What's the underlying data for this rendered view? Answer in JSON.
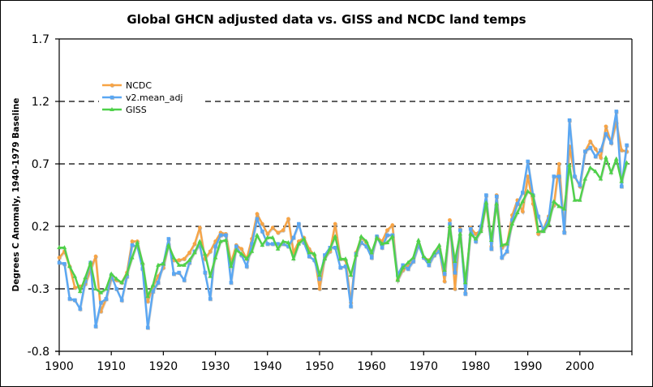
{
  "chart_data": {
    "type": "line",
    "title": "Global GHCN adjusted data vs. GISS and NCDC land temps",
    "xlabel": "",
    "ylabel": "Degrees C Anomaly, 1940-1979 Baseline",
    "xlim": [
      1900,
      2010
    ],
    "ylim": [
      -0.8,
      1.7
    ],
    "xticks": [
      1900,
      1910,
      1920,
      1930,
      1940,
      1950,
      1960,
      1970,
      1980,
      1990,
      2000
    ],
    "yticks": [
      -0.8,
      -0.3,
      0.2,
      0.7,
      1.2,
      1.7
    ],
    "ytick_labels": [
      "-0.8",
      "-0.3",
      "0.2",
      "0.7",
      "1.2",
      "1.7"
    ],
    "grid": "horizontal dashed at -0.3, 0.2, 0.7, 1.2",
    "legend_position": "upper-left",
    "x": [
      1900,
      1901,
      1902,
      1903,
      1904,
      1905,
      1906,
      1907,
      1908,
      1909,
      1910,
      1911,
      1912,
      1913,
      1914,
      1915,
      1916,
      1917,
      1918,
      1919,
      1920,
      1921,
      1922,
      1923,
      1924,
      1925,
      1926,
      1927,
      1928,
      1929,
      1930,
      1931,
      1932,
      1933,
      1934,
      1935,
      1936,
      1937,
      1938,
      1939,
      1940,
      1941,
      1942,
      1943,
      1944,
      1945,
      1946,
      1947,
      1948,
      1949,
      1950,
      1951,
      1952,
      1953,
      1954,
      1955,
      1956,
      1957,
      1958,
      1959,
      1960,
      1961,
      1962,
      1963,
      1964,
      1965,
      1966,
      1967,
      1968,
      1969,
      1970,
      1971,
      1972,
      1973,
      1974,
      1975,
      1976,
      1977,
      1978,
      1979,
      1980,
      1981,
      1982,
      1983,
      1984,
      1985,
      1986,
      1987,
      1988,
      1989,
      1990,
      1991,
      1992,
      1993,
      1994,
      1995,
      1996,
      1997,
      1998,
      1999,
      2000,
      2001,
      2002,
      2003,
      2004,
      2005,
      2006,
      2007,
      2008,
      2009
    ],
    "series": [
      {
        "name": "NCDC",
        "color": "#f7a445",
        "marker": "circle",
        "values": [
          -0.05,
          0.0,
          -0.12,
          -0.29,
          -0.28,
          -0.26,
          -0.15,
          -0.04,
          -0.48,
          -0.38,
          -0.22,
          -0.23,
          -0.25,
          -0.17,
          0.08,
          0.08,
          -0.1,
          -0.4,
          -0.28,
          -0.2,
          -0.13,
          0.06,
          -0.07,
          -0.07,
          -0.06,
          -0.01,
          0.06,
          0.19,
          -0.06,
          0.0,
          0.08,
          0.15,
          0.14,
          -0.09,
          0.05,
          0.02,
          -0.06,
          0.1,
          0.3,
          0.22,
          0.14,
          0.19,
          0.15,
          0.17,
          0.26,
          -0.01,
          0.08,
          0.11,
          0.02,
          -0.03,
          -0.3,
          -0.05,
          0.0,
          0.22,
          -0.06,
          -0.07,
          -0.41,
          -0.01,
          0.11,
          0.07,
          -0.03,
          0.12,
          0.08,
          0.17,
          0.21,
          -0.23,
          -0.15,
          -0.12,
          -0.07,
          0.06,
          -0.05,
          -0.07,
          -0.03,
          0.02,
          -0.24,
          0.25,
          -0.3,
          0.18,
          -0.33,
          0.19,
          0.14,
          0.17,
          0.38,
          0.04,
          0.45,
          0.03,
          0.06,
          0.29,
          0.41,
          0.32,
          0.6,
          0.38,
          0.14,
          0.18,
          0.28,
          0.37,
          0.7,
          0.16,
          0.84,
          0.6,
          0.52,
          0.8,
          0.88,
          0.82,
          0.75,
          1.0,
          0.87,
          1.03,
          0.81,
          0.8
        ]
      },
      {
        "name": "v2.mean_adj",
        "color": "#5aa7f3",
        "marker": "square",
        "values": [
          -0.09,
          -0.1,
          -0.38,
          -0.39,
          -0.46,
          -0.24,
          -0.09,
          -0.6,
          -0.41,
          -0.38,
          -0.19,
          -0.3,
          -0.39,
          -0.2,
          0.05,
          0.04,
          -0.14,
          -0.61,
          -0.32,
          -0.25,
          -0.1,
          0.1,
          -0.18,
          -0.17,
          -0.23,
          -0.09,
          0.0,
          0.05,
          -0.17,
          -0.38,
          0.04,
          0.13,
          0.13,
          -0.25,
          0.04,
          -0.03,
          -0.12,
          0.06,
          0.26,
          0.16,
          0.06,
          0.06,
          0.06,
          0.06,
          0.04,
          0.11,
          0.22,
          0.07,
          -0.04,
          -0.07,
          -0.22,
          -0.03,
          0.03,
          0.03,
          -0.13,
          -0.12,
          -0.44,
          -0.02,
          0.07,
          0.04,
          -0.05,
          0.12,
          0.03,
          0.13,
          0.13,
          -0.19,
          -0.11,
          -0.14,
          -0.08,
          0.05,
          -0.05,
          -0.11,
          -0.03,
          0.0,
          -0.18,
          0.22,
          -0.17,
          0.17,
          -0.34,
          0.18,
          0.08,
          0.2,
          0.45,
          0.02,
          0.44,
          -0.05,
          0.0,
          0.25,
          0.38,
          0.47,
          0.72,
          0.45,
          0.28,
          0.17,
          0.26,
          0.6,
          0.6,
          0.15,
          1.05,
          0.6,
          0.53,
          0.8,
          0.83,
          0.76,
          0.81,
          0.94,
          0.87,
          1.12,
          0.52,
          0.85
        ]
      },
      {
        "name": "GISS",
        "color": "#4fd14a",
        "marker": "triangle",
        "values": [
          0.03,
          0.03,
          -0.12,
          -0.2,
          -0.32,
          -0.21,
          -0.09,
          -0.3,
          -0.33,
          -0.3,
          -0.18,
          -0.22,
          -0.25,
          -0.18,
          -0.05,
          0.07,
          -0.09,
          -0.36,
          -0.27,
          -0.11,
          -0.1,
          0.05,
          -0.05,
          -0.11,
          -0.11,
          -0.07,
          -0.01,
          0.08,
          -0.02,
          -0.2,
          -0.05,
          0.08,
          0.09,
          -0.12,
          0.01,
          -0.02,
          -0.06,
          0.0,
          0.13,
          0.05,
          0.11,
          0.11,
          0.02,
          0.08,
          0.07,
          -0.06,
          0.06,
          0.1,
          -0.01,
          -0.02,
          -0.19,
          -0.06,
          0.02,
          0.12,
          -0.06,
          -0.06,
          -0.19,
          -0.03,
          0.12,
          0.08,
          -0.01,
          0.11,
          0.06,
          0.07,
          0.12,
          -0.23,
          -0.13,
          -0.09,
          -0.05,
          0.09,
          -0.04,
          -0.08,
          -0.01,
          0.05,
          -0.15,
          0.2,
          -0.08,
          0.14,
          -0.25,
          0.14,
          0.1,
          0.16,
          0.39,
          0.09,
          0.38,
          0.05,
          0.06,
          0.22,
          0.31,
          0.4,
          0.48,
          0.45,
          0.16,
          0.16,
          0.22,
          0.4,
          0.36,
          0.34,
          0.69,
          0.41,
          0.41,
          0.58,
          0.67,
          0.64,
          0.58,
          0.75,
          0.63,
          0.74,
          0.56,
          0.71
        ]
      }
    ]
  }
}
